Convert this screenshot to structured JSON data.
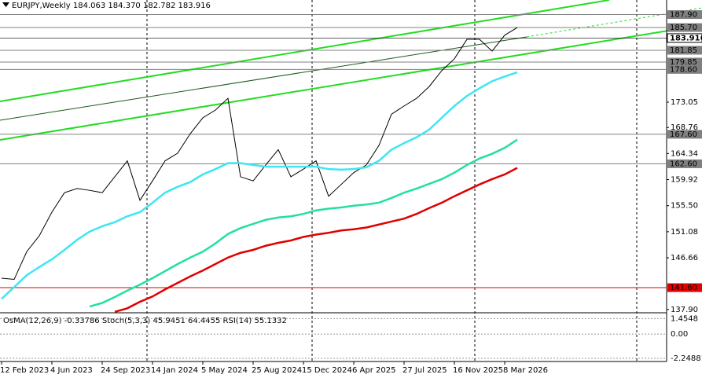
{
  "chart_data": {
    "type": "line",
    "title": "EURJPY,Weekly  184.063 184.370 182.782 183.916",
    "categories": [
      "12 Feb 2023",
      null,
      null,
      null,
      "4 Jun 2023",
      null,
      null,
      null,
      "24 Sep 2023",
      null,
      null,
      null,
      "14 Jan 2024",
      null,
      null,
      null,
      "5 May 2024",
      null,
      null,
      null,
      "25 Aug 2024",
      null,
      null,
      null,
      "15 Dec 2024",
      null,
      null,
      null,
      "6 Apr 2025",
      null,
      null,
      null,
      "27 Jul 2025",
      null,
      null,
      null,
      "16 Nov 2025",
      null,
      null,
      null,
      "8 Mar 2026",
      null
    ],
    "series": [
      {
        "color": "#000000",
        "values": [
          143.2,
          143,
          147.7,
          150.4,
          154.4,
          157.7,
          158.4,
          158.1,
          157.7,
          160.4,
          163.1,
          156.4,
          159.7,
          163.1,
          164.4,
          167.7,
          170.4,
          171.7,
          173.7,
          160.4,
          159.7,
          162.4,
          165,
          160.4,
          161.7,
          163.1,
          157.1,
          159.1,
          161.1,
          162.4,
          165.7,
          171,
          172.4,
          173.7,
          175.7,
          178.4,
          180.4,
          183.7,
          183.7,
          181.7,
          184.4,
          185.7
        ]
      },
      {
        "color": "#3ee6f2",
        "values": [
          139.7,
          141.7,
          143.7,
          145.1,
          146.4,
          148.0,
          149.7,
          151.1,
          152.0,
          152.7,
          153.7,
          154.4,
          156.0,
          157.7,
          158.7,
          159.5,
          160.8,
          161.7,
          162.7,
          162.7,
          162.4,
          162.1,
          162.1,
          162.1,
          162.1,
          162.1,
          161.7,
          161.6,
          161.7,
          162.0,
          163.1,
          165.0,
          166.1,
          167.1,
          168.4,
          170.4,
          172.4,
          174.1,
          175.4,
          176.6,
          177.4,
          178.1
        ]
      },
      {
        "color": "#22e0a0",
        "values": [
          null,
          null,
          null,
          null,
          null,
          null,
          null,
          138.4,
          139.0,
          140.0,
          141.1,
          142.1,
          143.2,
          144.4,
          145.6,
          146.7,
          147.7,
          149.1,
          150.7,
          151.7,
          152.4,
          153.1,
          153.5,
          153.7,
          154.1,
          154.7,
          155.0,
          155.2,
          155.5,
          155.7,
          156.0,
          156.8,
          157.7,
          158.4,
          159.2,
          160.0,
          161.1,
          162.4,
          163.5,
          164.3,
          165.3,
          166.7
        ]
      },
      {
        "color": "#e00000",
        "values": [
          null,
          null,
          null,
          null,
          null,
          null,
          null,
          null,
          null,
          137.5,
          138.1,
          139.2,
          140.1,
          141.3,
          142.4,
          143.5,
          144.5,
          145.6,
          146.7,
          147.5,
          148.0,
          148.7,
          149.2,
          149.6,
          150.2,
          150.6,
          150.9,
          151.3,
          151.5,
          151.8,
          152.3,
          152.8,
          153.3,
          154.1,
          155.1,
          156.0,
          157.1,
          158.1,
          159.1,
          160.0,
          160.8,
          161.9
        ]
      }
    ],
    "ylim": [
      137.34,
      190.37
    ],
    "yticks": [
      173.05,
      168.76,
      164.34,
      159.92,
      {
        "value": 155.5,
        "label": "155.50"
      },
      151.08,
      146.66,
      {
        "value": 137.9,
        "label": "137.90"
      }
    ],
    "levels": [
      {
        "value": 187.9,
        "label": "187.90",
        "color": "#808080"
      },
      {
        "value": 185.7,
        "label": "185.70",
        "color": "#808080"
      },
      {
        "value": 183.916,
        "color": "#000000"
      },
      {
        "value": 181.85,
        "color": "#808080"
      },
      {
        "value": 179.85,
        "color": "#808080"
      },
      {
        "value": 178.6,
        "label": "178.60",
        "color": "#808080"
      },
      {
        "value": 167.6,
        "label": "167.60",
        "color": "#808080"
      },
      {
        "value": 162.6,
        "label": "162.60",
        "color": "#808080"
      },
      {
        "value": 141.6,
        "label": "141.60",
        "color": "#e00000"
      }
    ],
    "indicator": {
      "title": "OsMA(12,26,9) -0.33786  Stoch(5,3,3) 45.9451 64.4455  RSI(14) 55.1332",
      "ylim": [
        -2.48,
        1.92
      ],
      "yticks": [
        1.4548,
        {
          "value": 0,
          "label": "0.00"
        },
        -2.24881
      ]
    }
  }
}
